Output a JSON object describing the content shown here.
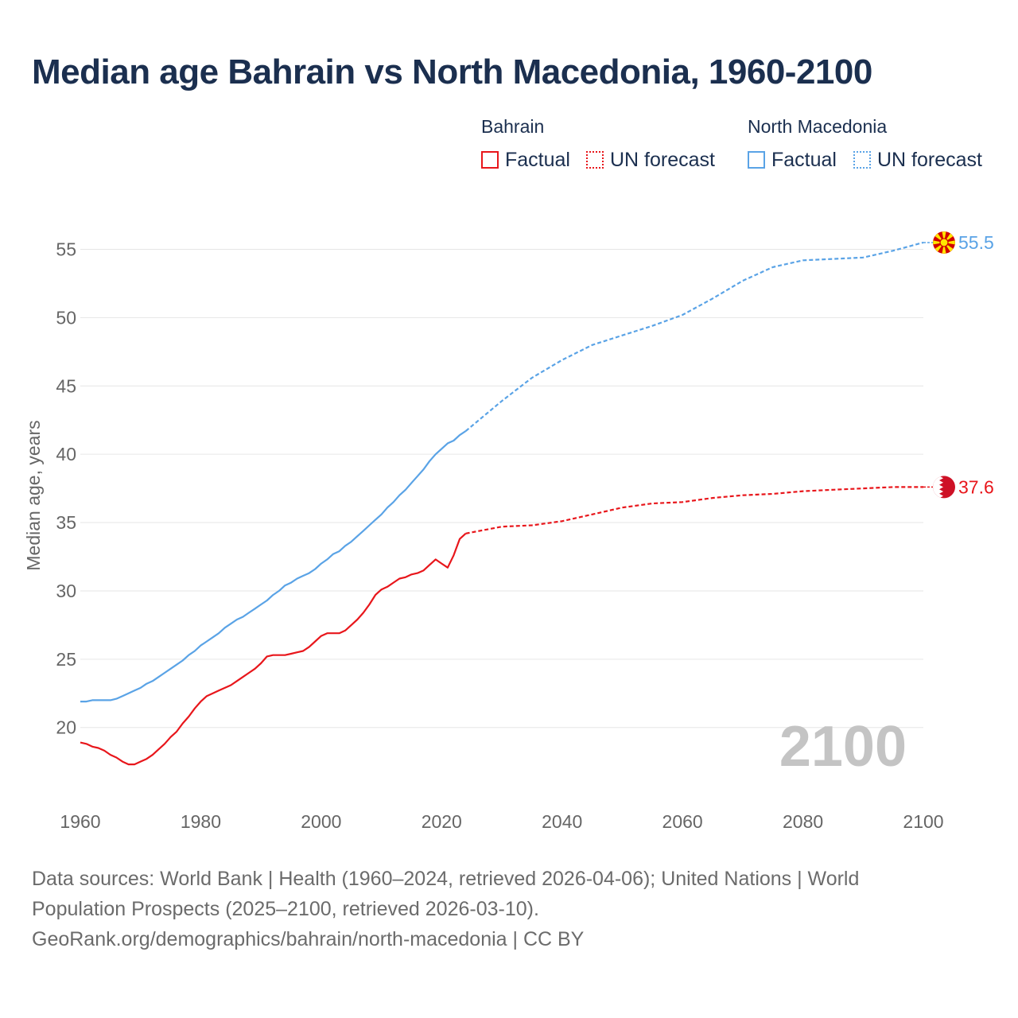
{
  "title": "Median age Bahrain vs North Macedonia, 1960-2100",
  "legend": {
    "groups": [
      {
        "name": "Bahrain",
        "factual": "Factual",
        "forecast": "UN forecast",
        "color": "#e8161b"
      },
      {
        "name": "North Macedonia",
        "factual": "Factual",
        "forecast": "UN forecast",
        "color": "#5aa3e6"
      }
    ]
  },
  "source": {
    "line1": "Data sources: World Bank | Health (1960–2024, retrieved 2026-04-06); United Nations | World",
    "line2": "Population Prospects (2025–2100, retrieved 2026-03-10).",
    "line3": "GeoRank.org/demographics/bahrain/north-macedonia | CC BY"
  },
  "chart_data": {
    "type": "line",
    "title": "Median age Bahrain vs North Macedonia, 1960-2100",
    "xlabel": "",
    "ylabel": "Median age, years",
    "xlim": [
      1960,
      2100
    ],
    "ylim": [
      15.5,
      58
    ],
    "x_ticks": [
      1960,
      1980,
      2000,
      2020,
      2040,
      2060,
      2080,
      2100
    ],
    "y_ticks": [
      20,
      25,
      30,
      35,
      40,
      45,
      50,
      55
    ],
    "grid": true,
    "year_watermark": "2100",
    "series": [
      {
        "name": "Bahrain",
        "color": "#e8161b",
        "end_label": "37.6",
        "factual": {
          "x": [
            1960,
            1961,
            1962,
            1963,
            1964,
            1965,
            1966,
            1967,
            1968,
            1969,
            1970,
            1971,
            1972,
            1973,
            1974,
            1975,
            1976,
            1977,
            1978,
            1979,
            1980,
            1981,
            1982,
            1983,
            1984,
            1985,
            1986,
            1987,
            1988,
            1989,
            1990,
            1991,
            1992,
            1993,
            1994,
            1995,
            1996,
            1997,
            1998,
            1999,
            2000,
            2001,
            2002,
            2003,
            2004,
            2005,
            2006,
            2007,
            2008,
            2009,
            2010,
            2011,
            2012,
            2013,
            2014,
            2015,
            2016,
            2017,
            2018,
            2019,
            2020,
            2021,
            2022,
            2023,
            2024
          ],
          "y": [
            18.9,
            18.8,
            18.6,
            18.5,
            18.3,
            18.0,
            17.8,
            17.5,
            17.3,
            17.3,
            17.5,
            17.7,
            18.0,
            18.4,
            18.8,
            19.3,
            19.7,
            20.3,
            20.8,
            21.4,
            21.9,
            22.3,
            22.5,
            22.7,
            22.9,
            23.1,
            23.4,
            23.7,
            24.0,
            24.3,
            24.7,
            25.2,
            25.3,
            25.3,
            25.3,
            25.4,
            25.5,
            25.6,
            25.9,
            26.3,
            26.7,
            26.9,
            26.9,
            26.9,
            27.1,
            27.5,
            27.9,
            28.4,
            29.0,
            29.7,
            30.1,
            30.3,
            30.6,
            30.9,
            31.0,
            31.2,
            31.3,
            31.5,
            31.9,
            32.3,
            32.0,
            31.7,
            32.6,
            33.8,
            34.2
          ]
        },
        "forecast": {
          "x": [
            2024,
            2030,
            2035,
            2040,
            2045,
            2050,
            2055,
            2060,
            2065,
            2070,
            2075,
            2080,
            2085,
            2090,
            2095,
            2100
          ],
          "y": [
            34.2,
            34.7,
            34.8,
            35.1,
            35.6,
            36.1,
            36.4,
            36.5,
            36.8,
            37.0,
            37.1,
            37.3,
            37.4,
            37.5,
            37.6,
            37.6
          ]
        }
      },
      {
        "name": "North Macedonia",
        "color": "#5aa3e6",
        "end_label": "55.5",
        "factual": {
          "x": [
            1960,
            1961,
            1962,
            1963,
            1964,
            1965,
            1966,
            1967,
            1968,
            1969,
            1970,
            1971,
            1972,
            1973,
            1974,
            1975,
            1976,
            1977,
            1978,
            1979,
            1980,
            1981,
            1982,
            1983,
            1984,
            1985,
            1986,
            1987,
            1988,
            1989,
            1990,
            1991,
            1992,
            1993,
            1994,
            1995,
            1996,
            1997,
            1998,
            1999,
            2000,
            2001,
            2002,
            2003,
            2004,
            2005,
            2006,
            2007,
            2008,
            2009,
            2010,
            2011,
            2012,
            2013,
            2014,
            2015,
            2016,
            2017,
            2018,
            2019,
            2020,
            2021,
            2022,
            2023,
            2024
          ],
          "y": [
            21.9,
            21.9,
            22.0,
            22.0,
            22.0,
            22.0,
            22.1,
            22.3,
            22.5,
            22.7,
            22.9,
            23.2,
            23.4,
            23.7,
            24.0,
            24.3,
            24.6,
            24.9,
            25.3,
            25.6,
            26.0,
            26.3,
            26.6,
            26.9,
            27.3,
            27.6,
            27.9,
            28.1,
            28.4,
            28.7,
            29.0,
            29.3,
            29.7,
            30.0,
            30.4,
            30.6,
            30.9,
            31.1,
            31.3,
            31.6,
            32.0,
            32.3,
            32.7,
            32.9,
            33.3,
            33.6,
            34.0,
            34.4,
            34.8,
            35.2,
            35.6,
            36.1,
            36.5,
            37.0,
            37.4,
            37.9,
            38.4,
            38.9,
            39.5,
            40.0,
            40.4,
            40.8,
            41.0,
            41.4,
            41.7
          ]
        },
        "forecast": {
          "x": [
            2024,
            2030,
            2035,
            2040,
            2045,
            2050,
            2055,
            2060,
            2065,
            2070,
            2075,
            2080,
            2085,
            2090,
            2095,
            2100
          ],
          "y": [
            41.7,
            43.9,
            45.6,
            46.9,
            48.0,
            48.7,
            49.4,
            50.2,
            51.4,
            52.7,
            53.7,
            54.2,
            54.3,
            54.4,
            54.9,
            55.5
          ]
        }
      }
    ]
  }
}
